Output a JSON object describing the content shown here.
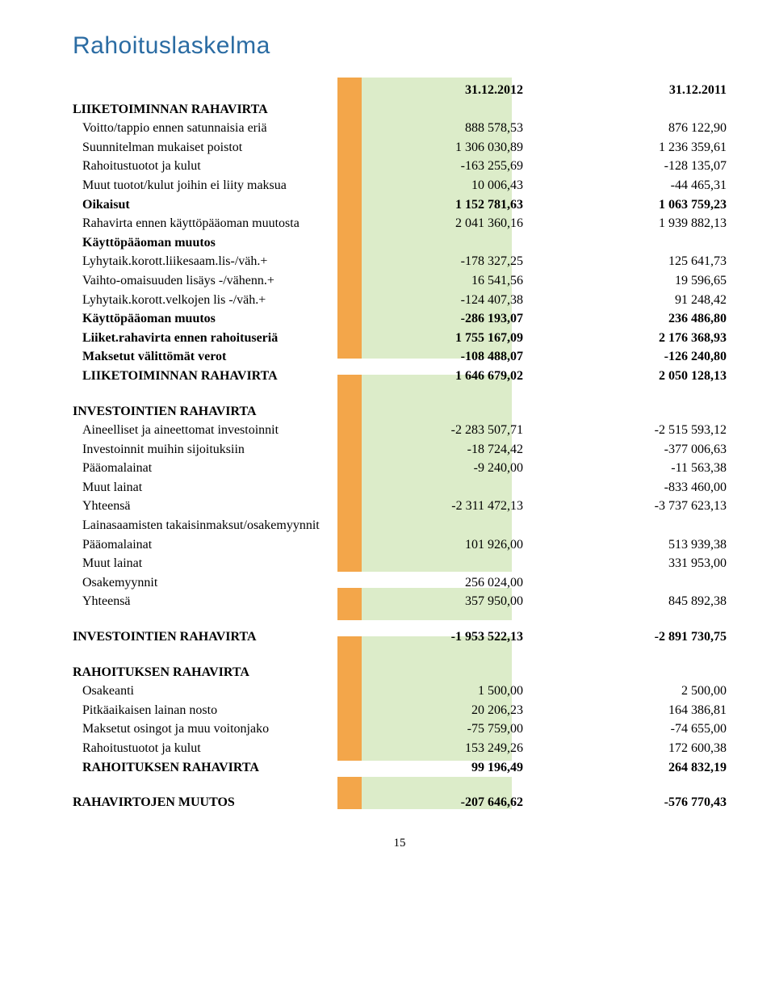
{
  "title": "Rahoituslaskelma",
  "columns": {
    "c1": "31.12.2012",
    "c2": "31.12.2011"
  },
  "sections": [
    {
      "header": "LIIKETOIMINNAN RAHAVIRTA",
      "rows": [
        {
          "label": "Voitto/tappio ennen satunnaisia eriä",
          "c1": "888 578,53",
          "c2": "876 122,90",
          "indent": true
        },
        {
          "label": "Suunnitelman mukaiset poistot",
          "c1": "1 306 030,89",
          "c2": "1 236 359,61",
          "indent": true
        },
        {
          "label": "Rahoitustuotot ja kulut",
          "c1": "-163 255,69",
          "c2": "-128 135,07",
          "indent": true
        },
        {
          "label": "Muut tuotot/kulut joihin ei liity maksua",
          "c1": "10 006,43",
          "c2": "-44 465,31",
          "indent": true
        },
        {
          "label": "Oikaisut",
          "c1": "1 152 781,63",
          "c2": "1 063 759,23",
          "bold": true,
          "indent": true
        },
        {
          "label": "Rahavirta ennen käyttöpääoman muutosta",
          "c1": "2 041 360,16",
          "c2": "1 939 882,13",
          "indent": true
        },
        {
          "label": "Käyttöpääoman muutos",
          "bold": true,
          "indent": true
        },
        {
          "label": "Lyhytaik.korott.liikesaam.lis-/väh.+",
          "c1": "-178 327,25",
          "c2": "125 641,73",
          "indent": true
        },
        {
          "label": "Vaihto-omaisuuden lisäys -/vähenn.+",
          "c1": "16 541,56",
          "c2": "19 596,65",
          "indent": true
        },
        {
          "label": "Lyhytaik.korott.velkojen lis -/väh.+",
          "c1": "-124 407,38",
          "c2": "91 248,42",
          "indent": true
        },
        {
          "label": "Käyttöpääoman muutos",
          "c1": "-286 193,07",
          "c2": "236 486,80",
          "bold": true,
          "indent": true
        },
        {
          "label": "Liiket.rahavirta ennen rahoituseriä",
          "c1": "1 755 167,09",
          "c2": "2 176 368,93",
          "bold": true,
          "indent": true
        },
        {
          "label": "Maksetut välittömät verot",
          "c1": "-108 488,07",
          "c2": "-126 240,80",
          "bold": true,
          "indent": true
        },
        {
          "label": "LIIKETOIMINNAN RAHAVIRTA",
          "c1": "1 646 679,02",
          "c2": "2 050 128,13",
          "bold": true,
          "indent": true
        }
      ]
    },
    {
      "header": "INVESTOINTIEN RAHAVIRTA",
      "rows": [
        {
          "label": "Aineelliset ja aineettomat investoinnit",
          "c1": "-2 283 507,71",
          "c2": "-2 515 593,12",
          "indent": true
        },
        {
          "label": "Investoinnit muihin sijoituksiin",
          "c1": "-18 724,42",
          "c2": "-377 006,63",
          "indent": true
        },
        {
          "label": "Pääomalainat",
          "c1": "-9 240,00",
          "c2": "-11 563,38",
          "indent": true
        },
        {
          "label": "Muut lainat",
          "c1": "",
          "c2": "-833 460,00",
          "indent": true
        },
        {
          "label": "Yhteensä",
          "c1": "-2 311 472,13",
          "c2": "-3 737 623,13",
          "indent": true
        },
        {
          "label": "Lainasaamisten takaisinmaksut/osakemyynnit",
          "indent": true
        },
        {
          "label": "Pääomalainat",
          "c1": "101 926,00",
          "c2": "513 939,38",
          "indent": true
        },
        {
          "label": "Muut lainat",
          "c1": "",
          "c2": "331 953,00",
          "indent": true
        },
        {
          "label": "Osakemyynnit",
          "c1": "256 024,00",
          "c2": "",
          "indent": true
        },
        {
          "label": "Yhteensä",
          "c1": "357 950,00",
          "c2": "845 892,38",
          "indent": true
        }
      ]
    },
    {
      "rows": [
        {
          "label": "INVESTOINTIEN RAHAVIRTA",
          "c1": "-1 953 522,13",
          "c2": "-2 891 730,75",
          "bold": true
        }
      ]
    },
    {
      "header": "RAHOITUKSEN RAHAVIRTA",
      "rows": [
        {
          "label": "Osakeanti",
          "c1": "1 500,00",
          "c2": "2 500,00",
          "indent": true
        },
        {
          "label": "Pitkäaikaisen lainan nosto",
          "c1": "20 206,23",
          "c2": "164 386,81",
          "indent": true
        },
        {
          "label": "Maksetut osingot ja muu voitonjako",
          "c1": "-75 759,00",
          "c2": "-74 655,00",
          "indent": true
        },
        {
          "label": "Rahoitustuotot ja kulut",
          "c1": "153 249,26",
          "c2": "172 600,38",
          "indent": true
        },
        {
          "label": "RAHOITUKSEN RAHAVIRTA",
          "c1": "99 196,49",
          "c2": "264 832,19",
          "bold": true,
          "indent": true
        }
      ]
    },
    {
      "rows": [
        {
          "label": "RAHAVIRTOJEN MUUTOS",
          "c1": "-207 646,62",
          "c2": "-576 770,43",
          "bold": true
        }
      ]
    }
  ],
  "pageNumber": "15",
  "style": {
    "titleColor": "#2b6ca3",
    "accentColor": "#f3a64a",
    "greenColor": "#dcecc9",
    "bg": "#ffffff",
    "text": "#000000",
    "fontSize": 16
  }
}
